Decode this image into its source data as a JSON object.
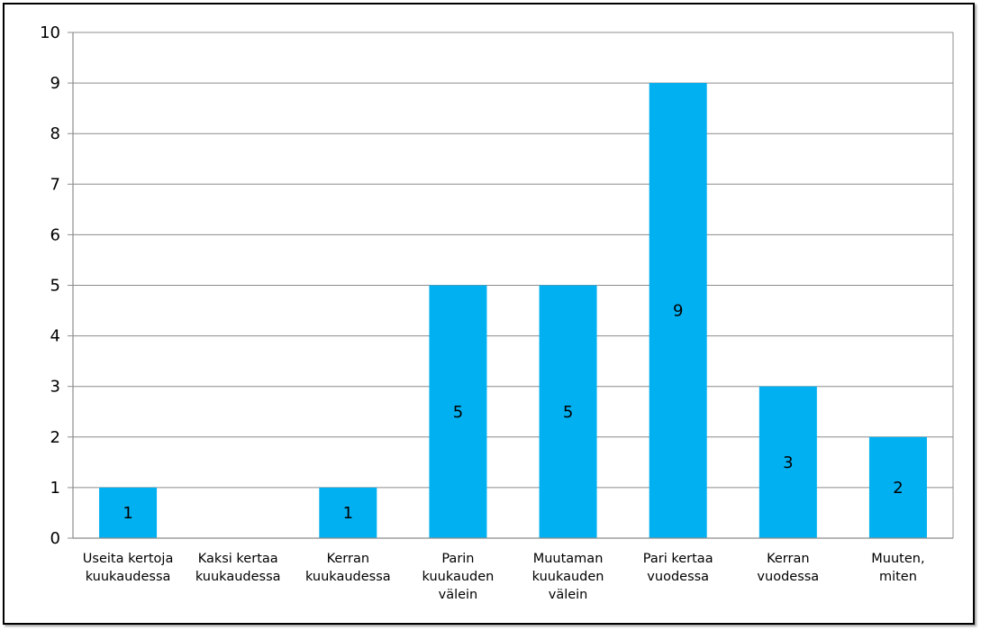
{
  "chart_data": {
    "type": "bar",
    "categories": [
      [
        "Useita kertoja",
        "kuukaudessa"
      ],
      [
        "Kaksi kertaa",
        "kuukaudessa"
      ],
      [
        "Kerran",
        "kuukaudessa"
      ],
      [
        "Parin",
        "kuukauden",
        "välein"
      ],
      [
        "Muutaman",
        "kuukauden",
        "välein"
      ],
      [
        "Pari kertaa",
        "vuodessa"
      ],
      [
        "Kerran",
        "vuodessa"
      ],
      [
        "Muuten,",
        "miten"
      ]
    ],
    "values": [
      1,
      0,
      1,
      5,
      5,
      9,
      3,
      2
    ],
    "data_labels": [
      "1",
      "",
      "1",
      "5",
      "5",
      "9",
      "3",
      "2"
    ],
    "y_ticks": [
      "0",
      "1",
      "2",
      "3",
      "4",
      "5",
      "6",
      "7",
      "8",
      "9",
      "10"
    ],
    "ylim": [
      0,
      10
    ],
    "title": "",
    "xlabel": "",
    "ylabel": "",
    "grid": true,
    "legend": "none",
    "colors": {
      "bar": "#00B0F0",
      "grid": "#8C8C8C",
      "axis": "#8C8C8C",
      "frame": "#000000"
    }
  }
}
